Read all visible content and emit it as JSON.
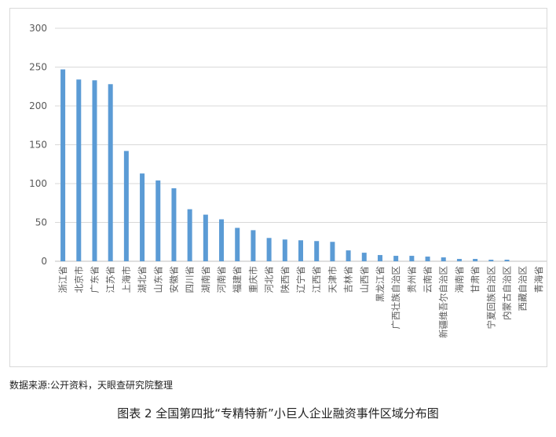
{
  "source_note": "数据来源:公开资料，天眼查研究院整理",
  "caption": "图表 2 全国第四批“专精特新”小巨人企业融资事件区域分布图",
  "chart_data": {
    "type": "bar",
    "title": "",
    "xlabel": "",
    "ylabel": "",
    "ylim": [
      0,
      300
    ],
    "yticks": [
      0,
      50,
      100,
      150,
      200,
      250,
      300
    ],
    "grid": true,
    "legend": "none",
    "bar_color": "#5b9bd5",
    "categories": [
      "浙江省",
      "北京市",
      "广东省",
      "江苏省",
      "上海市",
      "湖北省",
      "山东省",
      "安徽省",
      "四川省",
      "湖南省",
      "河南省",
      "福建省",
      "重庆市",
      "河北省",
      "陕西省",
      "辽宁省",
      "江西省",
      "天津市",
      "吉林省",
      "山西省",
      "黑龙江省",
      "广西壮族自治区",
      "贵州省",
      "云南省",
      "新疆维吾尔自治区",
      "海南省",
      "甘肃省",
      "宁夏回族自治区",
      "内蒙古自治区",
      "西藏自治区",
      "青海省"
    ],
    "values": [
      247,
      234,
      233,
      228,
      142,
      113,
      104,
      94,
      67,
      60,
      54,
      43,
      40,
      30,
      28,
      27,
      26,
      25,
      14,
      11,
      8,
      7,
      7,
      6,
      5,
      3,
      3,
      2,
      2,
      0,
      0
    ]
  }
}
